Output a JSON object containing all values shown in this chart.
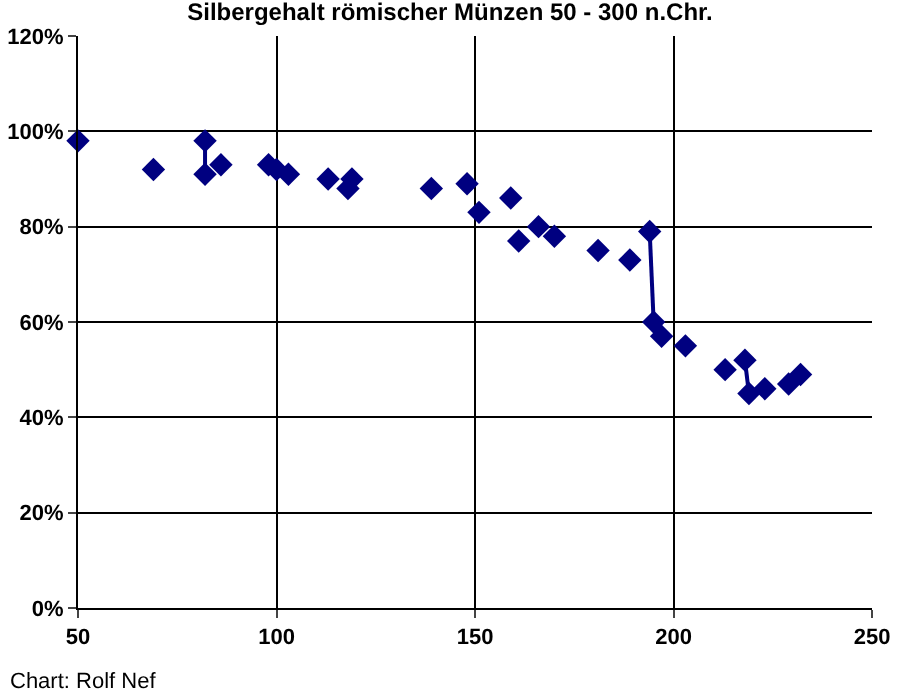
{
  "chart_data": {
    "type": "scatter",
    "title": "Silbergehalt römischer Münzen 50 - 300 n.Chr.",
    "annotations": [
      "Chart: Rolf Nef"
    ],
    "marker": "diamond",
    "line_style": "solid",
    "grid": true,
    "xlim": [
      50,
      250
    ],
    "xticks": [
      50,
      100,
      150,
      200,
      250
    ],
    "ylim": [
      0,
      120
    ],
    "yticks": [
      {
        "value": 0,
        "label": "0%"
      },
      {
        "value": 20,
        "label": "20%"
      },
      {
        "value": 40,
        "label": "40%"
      },
      {
        "value": 60,
        "label": "60%"
      },
      {
        "value": 80,
        "label": "80%"
      },
      {
        "value": 100,
        "label": "100%"
      },
      {
        "value": 120,
        "label": "120%"
      }
    ],
    "series": [
      {
        "color": "#000080",
        "x": [
          50,
          69,
          82,
          82,
          86,
          98,
          100,
          103,
          113,
          118,
          119,
          139,
          148,
          151,
          159,
          161,
          166,
          170,
          181,
          189,
          194,
          195,
          197,
          203,
          213,
          218,
          219,
          223,
          229,
          232
        ],
        "values": [
          98,
          92,
          98,
          91,
          93,
          93,
          92,
          91,
          90,
          88,
          90,
          88,
          89,
          83,
          86,
          77,
          80,
          78,
          75,
          73,
          79,
          60,
          57,
          55,
          50,
          52,
          45,
          46,
          47,
          49
        ]
      },
      {
        "type": "line",
        "marker": "none",
        "color": "#000080",
        "x": [
          82,
          82
        ],
        "values": [
          98,
          91
        ]
      },
      {
        "type": "line",
        "marker": "none",
        "color": "#000080",
        "x": [
          194,
          195
        ],
        "values": [
          79,
          60
        ]
      },
      {
        "type": "line",
        "marker": "none",
        "color": "#000080",
        "x": [
          218,
          219
        ],
        "values": [
          52,
          45
        ]
      }
    ]
  }
}
